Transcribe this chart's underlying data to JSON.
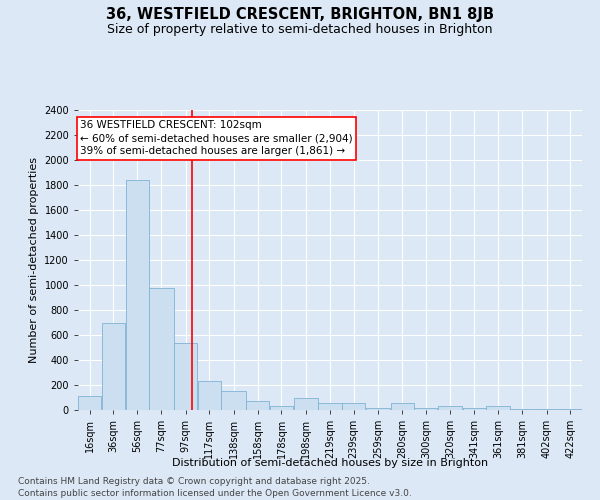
{
  "title": "36, WESTFIELD CRESCENT, BRIGHTON, BN1 8JB",
  "subtitle": "Size of property relative to semi-detached houses in Brighton",
  "xlabel": "Distribution of semi-detached houses by size in Brighton",
  "ylabel": "Number of semi-detached properties",
  "bin_labels": [
    "16sqm",
    "36sqm",
    "56sqm",
    "77sqm",
    "97sqm",
    "117sqm",
    "138sqm",
    "158sqm",
    "178sqm",
    "198sqm",
    "219sqm",
    "239sqm",
    "259sqm",
    "280sqm",
    "300sqm",
    "320sqm",
    "341sqm",
    "361sqm",
    "381sqm",
    "402sqm",
    "422sqm"
  ],
  "bin_edges": [
    6,
    26,
    46,
    66,
    87,
    107,
    127,
    148,
    168,
    188,
    209,
    229,
    249,
    270,
    290,
    310,
    331,
    351,
    371,
    392,
    412,
    432
  ],
  "bar_heights": [
    110,
    700,
    1840,
    980,
    540,
    230,
    155,
    70,
    30,
    100,
    60,
    55,
    15,
    55,
    15,
    30,
    15,
    30,
    10,
    10,
    10
  ],
  "bar_color": "#ccdff0",
  "bar_edge_color": "#7fb3d3",
  "property_line_x": 102,
  "annotation_label": "36 WESTFIELD CRESCENT: 102sqm",
  "annotation_line1": "← 60% of semi-detached houses are smaller (2,904)",
  "annotation_line2": "39% of semi-detached houses are larger (1,861) →",
  "ylim": [
    0,
    2400
  ],
  "yticks": [
    0,
    200,
    400,
    600,
    800,
    1000,
    1200,
    1400,
    1600,
    1800,
    2000,
    2200,
    2400
  ],
  "bg_color": "#dce8f5",
  "plot_bg_color": "#dce8f5",
  "grid_color": "#ffffff",
  "footer_line1": "Contains HM Land Registry data © Crown copyright and database right 2025.",
  "footer_line2": "Contains public sector information licensed under the Open Government Licence v3.0.",
  "title_fontsize": 10.5,
  "subtitle_fontsize": 9,
  "axis_label_fontsize": 8,
  "tick_fontsize": 7,
  "footer_fontsize": 6.5,
  "annotation_fontsize": 7.5
}
